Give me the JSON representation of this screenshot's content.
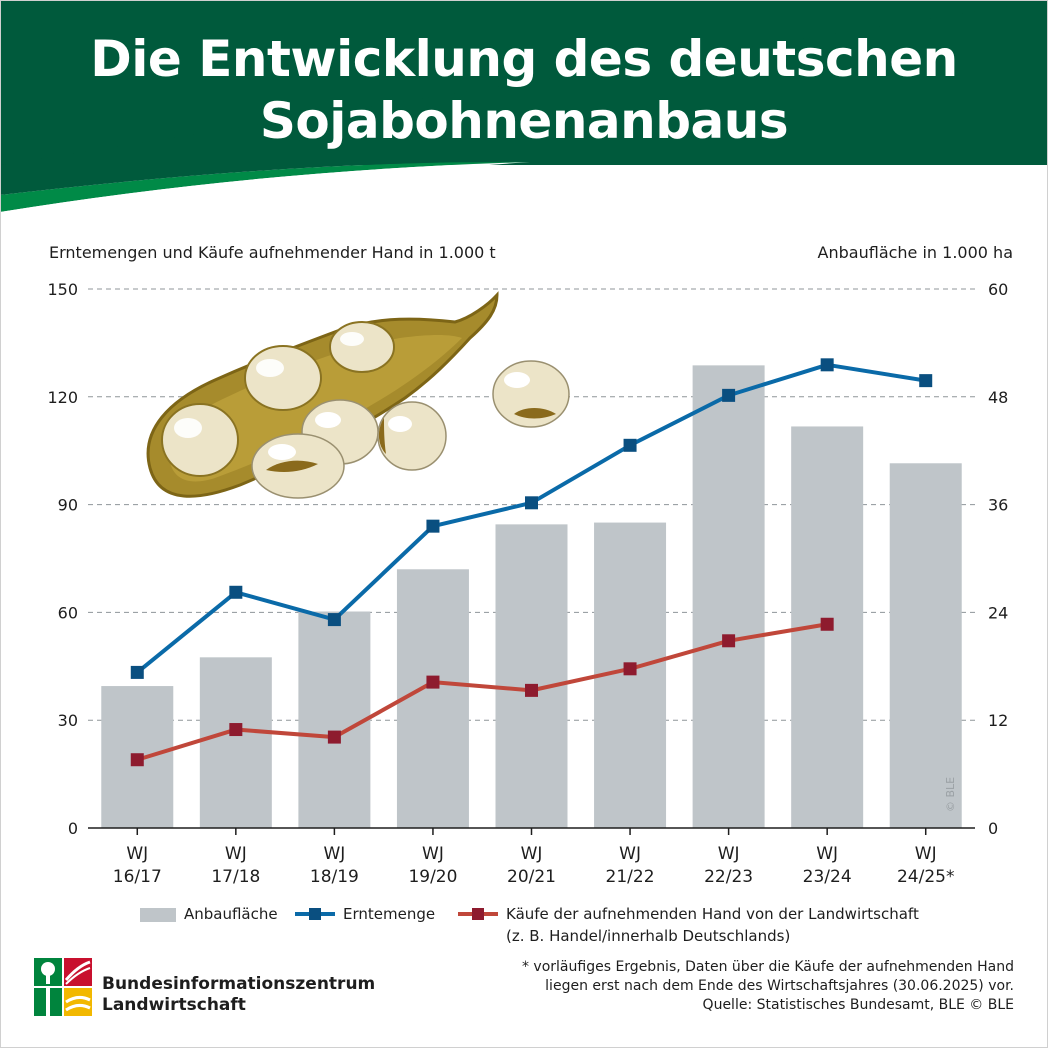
{
  "header": {
    "title_line1": "Die Entwicklung des deutschen",
    "title_line2": "Sojabohnenanbaus",
    "colors": {
      "dark_green": "#005a3c",
      "bright_green": "#008a47"
    }
  },
  "illustration": {
    "name": "soybean-pod-icon"
  },
  "chart_data": {
    "type": "bar",
    "categories": [
      [
        "WJ",
        "16/17"
      ],
      [
        "WJ",
        "17/18"
      ],
      [
        "WJ",
        "18/19"
      ],
      [
        "WJ",
        "19/20"
      ],
      [
        "WJ",
        "20/21"
      ],
      [
        "WJ",
        "21/22"
      ],
      [
        "WJ",
        "22/23"
      ],
      [
        "WJ",
        "23/24"
      ],
      [
        "WJ",
        "24/25*"
      ]
    ],
    "ylabel_left": "Erntemengen und Käufe aufnehmender Hand in 1.000 t",
    "ylabel_right": "Anbaufläche in 1.000 ha",
    "ylim_left": [
      0,
      150
    ],
    "yticks_left": [
      0,
      30,
      60,
      90,
      120,
      150
    ],
    "ylim_right": [
      0,
      60
    ],
    "yticks_right": [
      0,
      12,
      24,
      36,
      48,
      60
    ],
    "grid": true,
    "series": [
      {
        "name": "Anbaufläche",
        "type": "bar",
        "axis": "right",
        "color": "#bfc5c9",
        "values": [
          15.8,
          19.0,
          24.1,
          28.8,
          33.8,
          34.0,
          51.5,
          44.7,
          40.6
        ]
      },
      {
        "name": "Erntemenge",
        "type": "line",
        "axis": "left",
        "color": "#0a6aa8",
        "values": [
          43.3,
          65.6,
          58.0,
          84.0,
          90.5,
          106.5,
          120.4,
          128.9,
          124.5
        ]
      },
      {
        "name": "Käufe der aufnehmenden Hand von der Landwirtschaft",
        "name_line2": "(z. B. Handel/innerhalb Deutschlands)",
        "type": "line",
        "axis": "left",
        "color": "#c0473a",
        "marker_color": "#8e1b2e",
        "values": [
          19.0,
          27.4,
          25.3,
          40.6,
          38.3,
          44.3,
          52.1,
          56.7,
          null
        ]
      }
    ],
    "legend_position": "bottom"
  },
  "footnote": {
    "line1": "* vorläufiges Ergebnis, Daten über die Käufe der aufnehmenden Hand",
    "line2": "liegen erst nach dem Ende des Wirtschaftsjahres (30.06.2025) vor.",
    "line3": "Quelle: Statistisches Bundesamt, BLE © BLE"
  },
  "copyright_vertical": "© BLE",
  "logo": {
    "line1": "Bundesinformationszentrum",
    "line2": "Landwirtschaft",
    "colors": {
      "green": "#00843d",
      "red": "#c8102e",
      "yellow": "#f2b800"
    }
  }
}
